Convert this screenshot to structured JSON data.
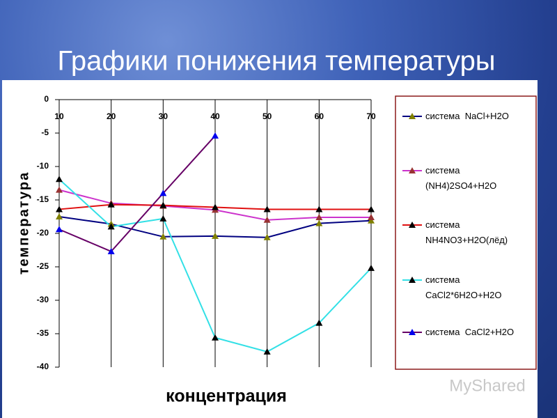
{
  "slide_title": "Графики понижения температуры",
  "watermark": "MyShared",
  "chart_data": {
    "type": "line",
    "x_label": "концентрация",
    "y_label": "температура",
    "x": [
      10,
      20,
      30,
      40,
      50,
      60,
      70
    ],
    "xlim": [
      10,
      70
    ],
    "xticks": [
      10,
      20,
      30,
      40,
      50,
      60,
      70
    ],
    "ylim": [
      -40,
      0
    ],
    "yticks": [
      0,
      -5,
      -10,
      -15,
      -20,
      -25,
      -30,
      -35,
      -40
    ],
    "grid": "vertical",
    "legend": "right",
    "series": [
      {
        "name": "система  NaCl+H2O",
        "color": "#000080",
        "marker_color": "#808000",
        "values": [
          -17.5,
          -18.6,
          -20.5,
          -20.4,
          -20.6,
          -18.5,
          -18.1
        ]
      },
      {
        "name": "система (NH4)2SO4+H2O",
        "color": "#cc33cc",
        "marker_color": "#993333",
        "values": [
          -13.5,
          -15.5,
          -15.9,
          -16.5,
          -18,
          -17.6,
          -17.6
        ]
      },
      {
        "name": "система NH4NO3+H2O(лёд)",
        "color": "#e01010",
        "marker_color": "#000000",
        "values": [
          -16.4,
          -15.7,
          -15.8,
          -16.1,
          -16.4,
          -16.4,
          -16.4
        ]
      },
      {
        "name": "система CaCl2*6H2O+H2O",
        "color": "#33e0e6",
        "marker_color": "#000000",
        "values": [
          -11.9,
          -19,
          -17.8,
          -35.6,
          -37.7,
          -33.4,
          -25.2
        ]
      },
      {
        "name": "система  CaCl2+H2O",
        "color": "#660066",
        "marker_color": "#0000ee",
        "values": [
          -19.4,
          -22.7,
          -14,
          -5.4,
          null,
          null,
          null
        ]
      }
    ]
  }
}
